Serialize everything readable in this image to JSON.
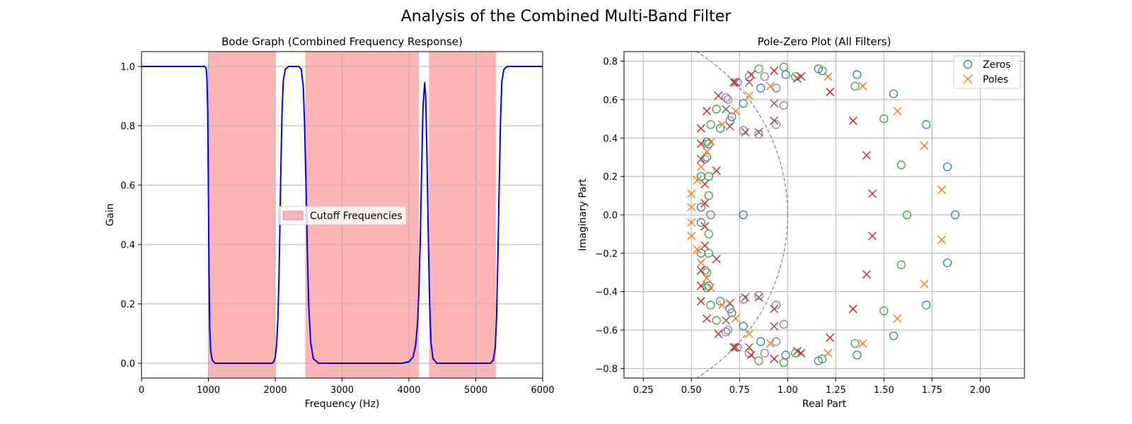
{
  "figure_title": "Analysis of the Combined Multi-Band Filter",
  "chart_data": [
    {
      "type": "line",
      "title": "Bode Graph (Combined Frequency Response)",
      "xlabel": "Frequency (Hz)",
      "ylabel": "Gain",
      "xlim": [
        0,
        6000
      ],
      "ylim": [
        -0.05,
        1.05
      ],
      "xticks": [
        0,
        1000,
        2000,
        3000,
        4000,
        5000,
        6000
      ],
      "yticks": [
        0.0,
        0.2,
        0.4,
        0.6,
        0.8,
        1.0
      ],
      "ytick_labels": [
        "0.0",
        "0.2",
        "0.4",
        "0.6",
        "0.8",
        "1.0"
      ],
      "grid": true,
      "series": [
        {
          "name": "",
          "color": "#0000ff",
          "points": [
            [
              0,
              1.0
            ],
            [
              850,
              1.0
            ],
            [
              950,
              1.0
            ],
            [
              970,
              0.99
            ],
            [
              980,
              0.95
            ],
            [
              990,
              0.85
            ],
            [
              1000,
              0.6
            ],
            [
              1010,
              0.3
            ],
            [
              1020,
              0.12
            ],
            [
              1035,
              0.04
            ],
            [
              1060,
              0.01
            ],
            [
              1100,
              0.0
            ],
            [
              1950,
              0.0
            ],
            [
              1980,
              0.005
            ],
            [
              2000,
              0.02
            ],
            [
              2020,
              0.06
            ],
            [
              2040,
              0.15
            ],
            [
              2060,
              0.33
            ],
            [
              2080,
              0.6
            ],
            [
              2100,
              0.83
            ],
            [
              2120,
              0.95
            ],
            [
              2150,
              0.99
            ],
            [
              2200,
              1.0
            ],
            [
              2350,
              1.0
            ],
            [
              2390,
              0.99
            ],
            [
              2420,
              0.93
            ],
            [
              2440,
              0.8
            ],
            [
              2460,
              0.6
            ],
            [
              2480,
              0.38
            ],
            [
              2500,
              0.2
            ],
            [
              2530,
              0.07
            ],
            [
              2570,
              0.015
            ],
            [
              2650,
              0.0
            ],
            [
              3900,
              0.0
            ],
            [
              4000,
              0.005
            ],
            [
              4060,
              0.02
            ],
            [
              4100,
              0.06
            ],
            [
              4130,
              0.14
            ],
            [
              4150,
              0.25
            ],
            [
              4170,
              0.42
            ],
            [
              4190,
              0.65
            ],
            [
              4210,
              0.86
            ],
            [
              4235,
              0.945
            ],
            [
              4250,
              0.9
            ],
            [
              4270,
              0.7
            ],
            [
              4290,
              0.42
            ],
            [
              4310,
              0.2
            ],
            [
              4330,
              0.07
            ],
            [
              4360,
              0.015
            ],
            [
              4420,
              0.0
            ],
            [
              5220,
              0.0
            ],
            [
              5260,
              0.01
            ],
            [
              5290,
              0.05
            ],
            [
              5310,
              0.15
            ],
            [
              5330,
              0.35
            ],
            [
              5350,
              0.6
            ],
            [
              5370,
              0.82
            ],
            [
              5390,
              0.95
            ],
            [
              5420,
              0.99
            ],
            [
              5470,
              1.0
            ],
            [
              6000,
              1.0
            ]
          ]
        }
      ],
      "bands": {
        "name": "Cutoff Frequencies",
        "color": "#ffb3b3",
        "ranges": [
          [
            1000,
            2000
          ],
          [
            2450,
            4150
          ],
          [
            4300,
            5300
          ]
        ]
      },
      "legend": {
        "position": "center",
        "entries": [
          "Cutoff Frequencies"
        ]
      }
    },
    {
      "type": "scatter",
      "title": "Pole-Zero Plot (All Filters)",
      "xlabel": "Real Part",
      "ylabel": "Imaginary Part",
      "xlim": [
        0.15,
        2.23
      ],
      "ylim": [
        -0.85,
        0.85
      ],
      "xticks": [
        0.25,
        0.5,
        0.75,
        1.0,
        1.25,
        1.5,
        1.75,
        2.0
      ],
      "xtick_labels": [
        "0.25",
        "0.50",
        "0.75",
        "1.00",
        "1.25",
        "1.50",
        "1.75",
        "2.00"
      ],
      "yticks": [
        -0.8,
        -0.6,
        -0.4,
        -0.2,
        0.0,
        0.2,
        0.4,
        0.6,
        0.8
      ],
      "ytick_labels": [
        "−0.8",
        "−0.6",
        "−0.4",
        "−0.2",
        "0.0",
        "0.2",
        "0.4",
        "0.6",
        "0.8"
      ],
      "grid": true,
      "unit_circle": {
        "radius": 1.0,
        "color": "#808080"
      },
      "legend": {
        "position": "top-right",
        "entries": [
          "Zeros",
          "Poles"
        ]
      },
      "zeros": [
        {
          "color": "#1f77b4",
          "points": [
            [
              0.77,
              0.0
            ],
            [
              0.55,
              0.2
            ],
            [
              0.55,
              0.04
            ],
            [
              0.55,
              -0.04
            ],
            [
              0.55,
              -0.2
            ],
            [
              0.59,
              0.37
            ],
            [
              0.59,
              -0.37
            ],
            [
              0.65,
              0.45
            ],
            [
              0.65,
              -0.45
            ],
            [
              0.71,
              0.51
            ],
            [
              0.71,
              -0.51
            ],
            [
              0.77,
              0.58
            ],
            [
              0.77,
              -0.58
            ],
            [
              0.86,
              0.66
            ],
            [
              0.86,
              -0.66
            ],
            [
              0.99,
              0.73
            ],
            [
              0.99,
              -0.73
            ],
            [
              1.16,
              0.76
            ],
            [
              1.16,
              -0.76
            ],
            [
              1.36,
              0.73
            ],
            [
              1.36,
              -0.73
            ],
            [
              1.55,
              0.63
            ],
            [
              1.55,
              -0.63
            ],
            [
              1.72,
              0.47
            ],
            [
              1.72,
              -0.47
            ],
            [
              1.83,
              0.25
            ],
            [
              1.83,
              -0.25
            ],
            [
              1.87,
              0.0
            ]
          ]
        },
        {
          "color": "#2ca02c",
          "points": [
            [
              0.6,
              0.0
            ],
            [
              0.59,
              0.1
            ],
            [
              0.59,
              -0.1
            ],
            [
              0.59,
              0.2
            ],
            [
              0.59,
              -0.2
            ],
            [
              0.58,
              0.3
            ],
            [
              0.58,
              -0.3
            ],
            [
              0.58,
              0.38
            ],
            [
              0.58,
              -0.38
            ],
            [
              0.6,
              0.47
            ],
            [
              0.6,
              -0.47
            ],
            [
              0.63,
              0.55
            ],
            [
              0.63,
              -0.55
            ],
            [
              0.85,
              0.76
            ],
            [
              0.85,
              -0.76
            ],
            [
              0.98,
              0.77
            ],
            [
              0.98,
              -0.77
            ],
            [
              1.04,
              0.72
            ],
            [
              1.04,
              -0.72
            ],
            [
              1.18,
              0.75
            ],
            [
              1.18,
              -0.75
            ],
            [
              1.35,
              0.67
            ],
            [
              1.35,
              -0.67
            ],
            [
              1.5,
              0.5
            ],
            [
              1.5,
              -0.5
            ],
            [
              1.59,
              0.26
            ],
            [
              1.59,
              -0.26
            ],
            [
              1.62,
              0.0
            ]
          ]
        },
        {
          "color": "#9467bd",
          "points": [
            [
              0.57,
              0.29
            ],
            [
              0.57,
              -0.29
            ],
            [
              0.69,
              0.6
            ],
            [
              0.69,
              -0.6
            ],
            [
              0.74,
              0.69
            ],
            [
              0.74,
              -0.69
            ],
            [
              0.8,
              0.72
            ],
            [
              0.8,
              -0.72
            ],
            [
              0.88,
              0.72
            ],
            [
              0.88,
              -0.72
            ],
            [
              0.94,
              0.66
            ],
            [
              0.94,
              -0.66
            ],
            [
              0.98,
              0.57
            ],
            [
              0.98,
              -0.57
            ],
            [
              0.94,
              0.47
            ],
            [
              0.94,
              -0.47
            ],
            [
              0.85,
              0.42
            ],
            [
              0.85,
              -0.42
            ],
            [
              0.77,
              0.44
            ],
            [
              0.77,
              -0.44
            ],
            [
              0.7,
              0.49
            ],
            [
              0.7,
              -0.49
            ],
            [
              0.68,
              0.61
            ],
            [
              0.68,
              -0.61
            ]
          ]
        }
      ],
      "poles": [
        {
          "color": "#ff7f0e",
          "points": [
            [
              0.5,
              0.11
            ],
            [
              0.5,
              0.04
            ],
            [
              0.5,
              -0.04
            ],
            [
              0.5,
              -0.11
            ],
            [
              0.53,
              0.18
            ],
            [
              0.53,
              -0.18
            ],
            [
              0.55,
              0.25
            ],
            [
              0.55,
              -0.25
            ],
            [
              0.58,
              0.33
            ],
            [
              0.58,
              -0.33
            ],
            [
              0.6,
              0.38
            ],
            [
              0.6,
              -0.38
            ],
            [
              0.66,
              0.47
            ],
            [
              0.66,
              -0.47
            ],
            [
              0.73,
              0.54
            ],
            [
              0.73,
              -0.54
            ],
            [
              0.8,
              0.62
            ],
            [
              0.8,
              -0.62
            ],
            [
              0.91,
              0.67
            ],
            [
              0.91,
              -0.67
            ],
            [
              1.05,
              0.71
            ],
            [
              1.05,
              -0.71
            ],
            [
              1.21,
              0.72
            ],
            [
              1.21,
              -0.72
            ],
            [
              1.39,
              0.67
            ],
            [
              1.39,
              -0.67
            ],
            [
              1.57,
              0.54
            ],
            [
              1.57,
              -0.54
            ],
            [
              1.71,
              0.36
            ],
            [
              1.71,
              -0.36
            ],
            [
              1.8,
              0.13
            ],
            [
              1.8,
              -0.13
            ]
          ]
        },
        {
          "color": "#d62728",
          "points": [
            [
              0.55,
              0.45
            ],
            [
              0.55,
              -0.45
            ],
            [
              0.55,
              0.37
            ],
            [
              0.55,
              -0.37
            ],
            [
              0.57,
              0.16
            ],
            [
              0.57,
              -0.16
            ],
            [
              0.57,
              0.06
            ],
            [
              0.57,
              -0.06
            ],
            [
              0.58,
              0.54
            ],
            [
              0.58,
              -0.54
            ],
            [
              0.63,
              0.23
            ],
            [
              0.63,
              -0.23
            ],
            [
              0.64,
              0.62
            ],
            [
              0.64,
              -0.62
            ],
            [
              0.72,
              0.69
            ],
            [
              0.72,
              -0.69
            ],
            [
              0.81,
              0.73
            ],
            [
              0.81,
              -0.73
            ],
            [
              0.93,
              0.75
            ],
            [
              0.93,
              -0.75
            ],
            [
              1.07,
              0.72
            ],
            [
              1.07,
              -0.72
            ],
            [
              1.22,
              0.64
            ],
            [
              1.22,
              -0.64
            ],
            [
              1.34,
              0.49
            ],
            [
              1.34,
              -0.49
            ],
            [
              1.41,
              0.31
            ],
            [
              1.41,
              -0.31
            ],
            [
              1.44,
              0.11
            ],
            [
              1.44,
              -0.11
            ]
          ]
        },
        {
          "color": "#8c564b",
          "points": [
            [
              0.55,
              0.29
            ],
            [
              0.55,
              -0.29
            ],
            [
              0.7,
              0.46
            ],
            [
              0.7,
              -0.46
            ],
            [
              0.73,
              0.69
            ],
            [
              0.73,
              -0.69
            ],
            [
              0.78,
              0.43
            ],
            [
              0.78,
              -0.43
            ],
            [
              0.8,
              0.69
            ],
            [
              0.8,
              -0.69
            ],
            [
              0.85,
              0.43
            ],
            [
              0.85,
              -0.43
            ],
            [
              0.93,
              0.58
            ],
            [
              0.93,
              -0.58
            ],
            [
              0.93,
              0.49
            ],
            [
              0.93,
              -0.49
            ],
            [
              1.05,
              0.71
            ],
            [
              1.05,
              -0.71
            ],
            [
              0.68,
              0.55
            ],
            [
              0.68,
              -0.55
            ]
          ]
        }
      ]
    }
  ]
}
